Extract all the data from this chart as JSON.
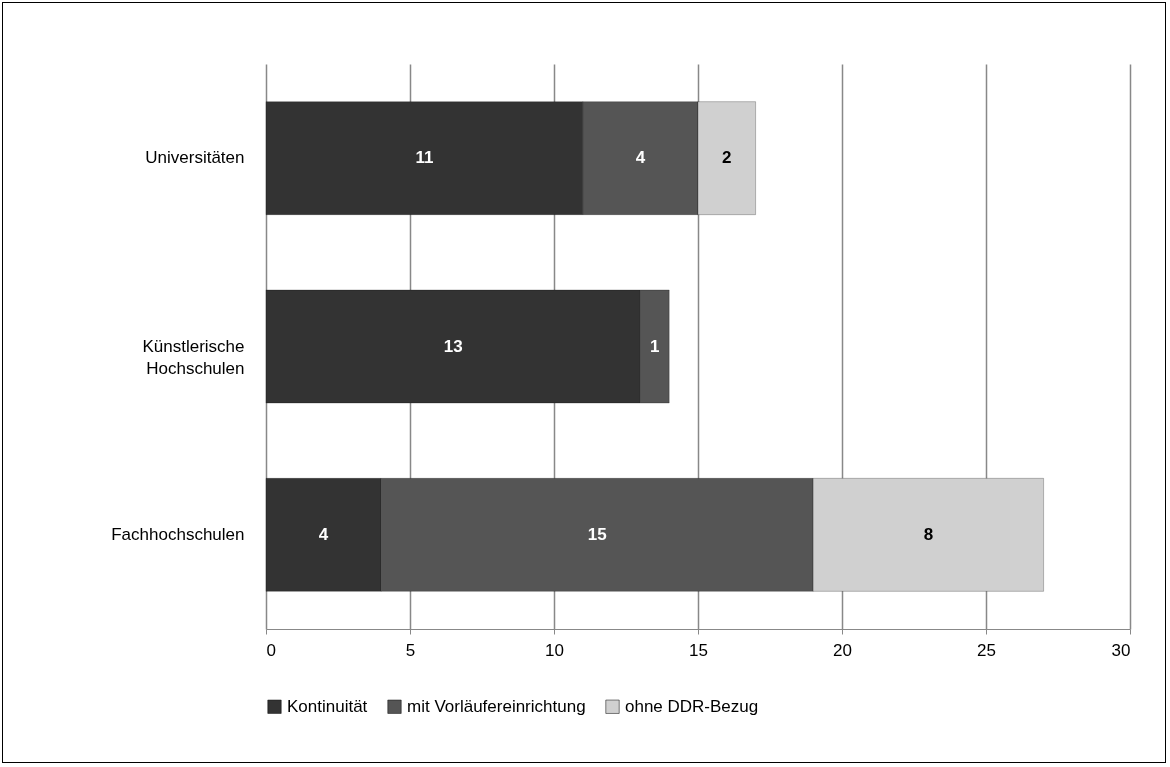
{
  "chart_data": {
    "type": "bar",
    "orientation": "horizontal",
    "stacked": true,
    "categories": [
      "Universitäten",
      "Künstlerische Hochschulen",
      "Fachhochschulen"
    ],
    "series": [
      {
        "name": "Kontinuität",
        "color": "#333333",
        "values": [
          11,
          13,
          4
        ]
      },
      {
        "name": "mit Vorläufereinrichtung",
        "color": "#555555",
        "values": [
          4,
          1,
          15
        ]
      },
      {
        "name": "ohne DDR-Bezug",
        "color": "#d0d0d0",
        "values": [
          2,
          null,
          8
        ]
      }
    ],
    "xlim": [
      0,
      30
    ],
    "xticks": [
      0,
      5,
      10,
      15,
      20,
      25,
      30
    ],
    "grid": "x",
    "legend": "bottom",
    "data_labels": true
  }
}
